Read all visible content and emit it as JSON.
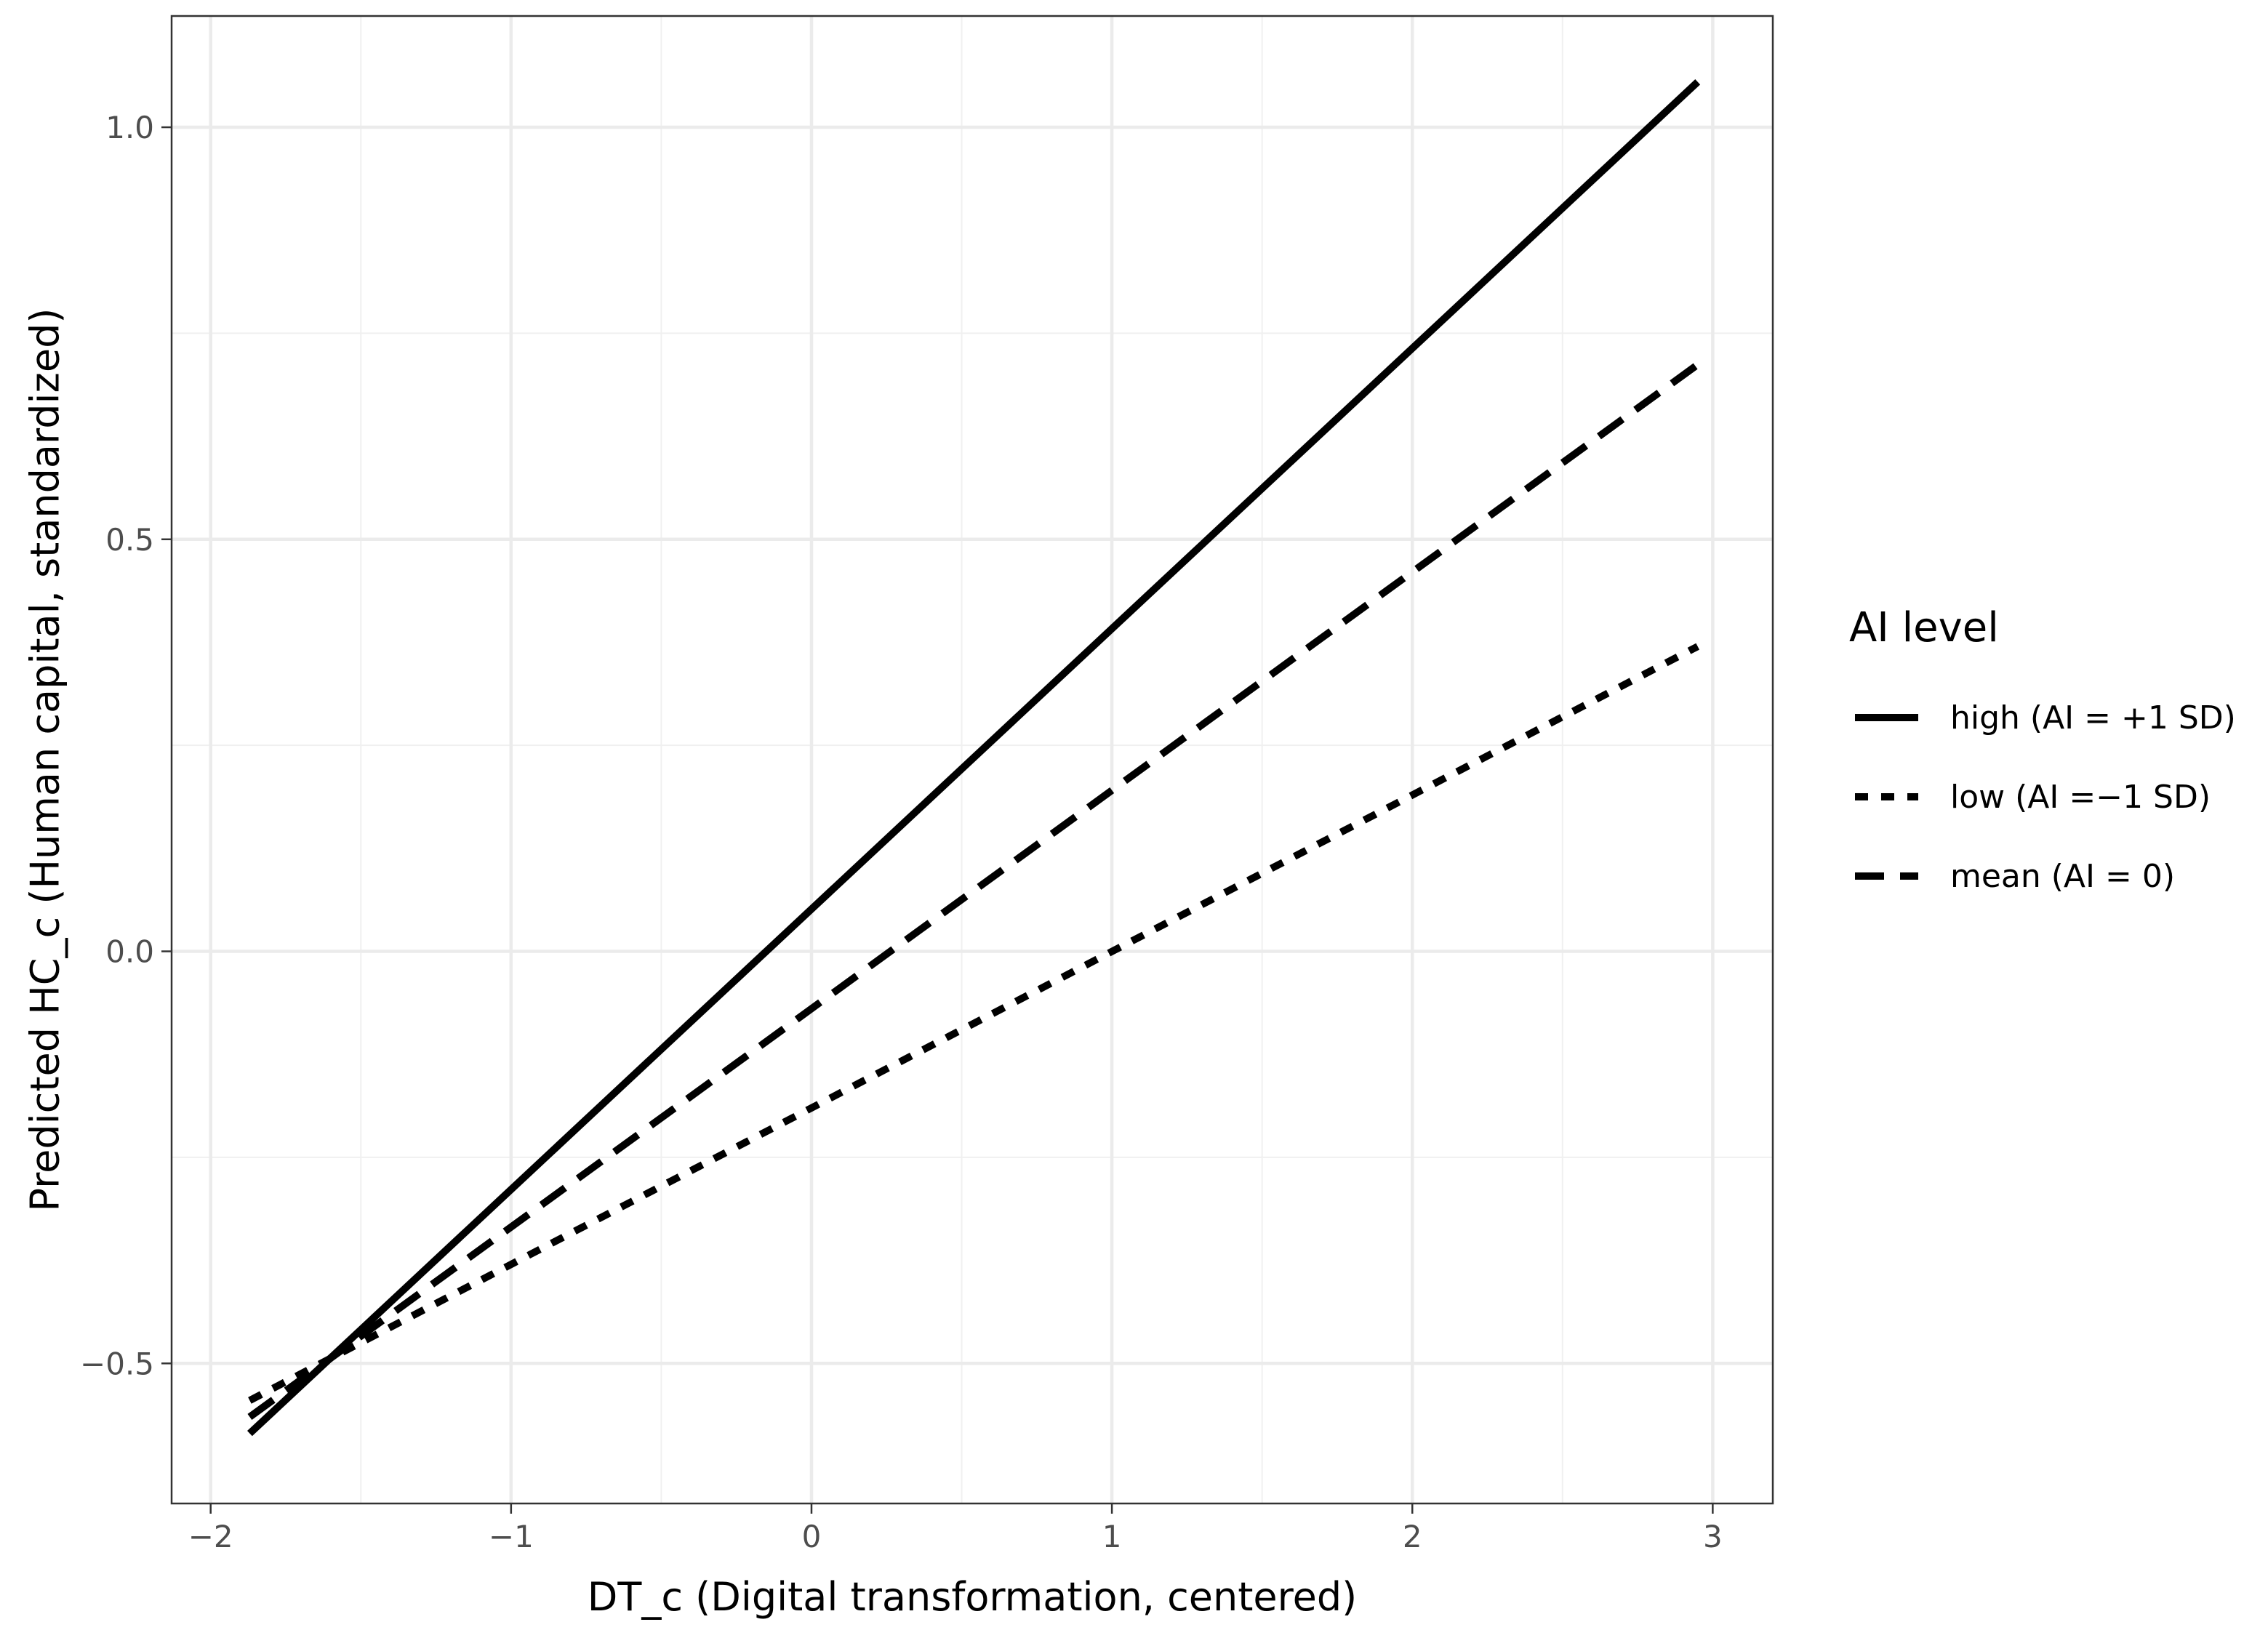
{
  "chart_data": {
    "type": "line",
    "xlabel": "DT_c (Digital transformation, centered)",
    "ylabel": "Predicted HC_c (Human capital, standardized)",
    "xlim": [
      -2.13,
      3.2
    ],
    "ylim": [
      -0.67,
      1.135
    ],
    "x_ticks": [
      -2,
      -1,
      0,
      1,
      2,
      3
    ],
    "x_tick_labels": [
      "−2",
      "−1",
      "0",
      "1",
      "2",
      "3"
    ],
    "y_ticks": [
      -0.5,
      0.0,
      0.5,
      1.0
    ],
    "y_tick_labels": [
      "−0.5",
      "0.0",
      "0.5",
      "1.0"
    ],
    "grid": true,
    "legend_position": "right",
    "legend_title": "AI level",
    "series": [
      {
        "name": "high (AI = +1 SD)",
        "linestyle": "solid",
        "color": "#000000",
        "x": [
          -1.87,
          2.95
        ],
        "y": [
          -0.585,
          1.055
        ]
      },
      {
        "name": "low (AI =−1 SD)",
        "linestyle": "dotted",
        "color": "#000000",
        "x": [
          -1.87,
          2.95
        ],
        "y": [
          -0.545,
          0.37
        ]
      },
      {
        "name": "mean (AI = 0)",
        "linestyle": "dashed",
        "color": "#000000",
        "x": [
          -1.87,
          2.95
        ],
        "y": [
          -0.565,
          0.712
        ]
      }
    ]
  }
}
